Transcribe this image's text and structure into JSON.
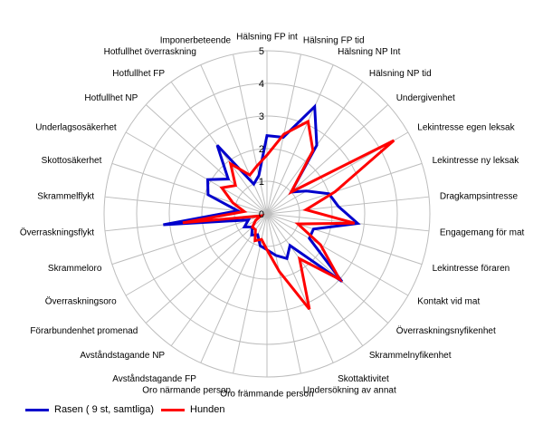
{
  "chart_data": {
    "type": "radar",
    "title": "",
    "rmin": 0,
    "rmax": 5,
    "ticks": [
      0,
      1,
      2,
      3,
      4,
      5
    ],
    "grid": true,
    "legend_position": "bottom-left",
    "categories": [
      "Hälsning FP int",
      "Hälsning FP tid",
      "Hälsning NP Int",
      "Hälsning NP tid",
      "Undergivenhet",
      "Lekintresse egen leksak",
      "Lekintresse ny leksak",
      "Dragkampsintresse",
      "Engagemang för mat",
      "Lekintresse föraren",
      "Kontakt vid mat",
      "Överraskningsnyfikenhet",
      "Skrammelnyfikenhet",
      "Skottaktivitet",
      "Undersökning av annat",
      "Oro främmande person",
      "Oro närmande person",
      "Avståndstagande FP",
      "Avståndstagande NP",
      "Förarbundenhet promenad",
      "Överraskningsoro",
      "Skrammeloro",
      "Överraskningsflykt",
      "Skrammelflykt",
      "Skottosäkerhet",
      "Underlagsosäkerhet",
      "Hotfullhet NP",
      "Hotfullhet FP",
      "Hotfullhet överraskning",
      "Imponerbeteende"
    ],
    "series": [
      {
        "name": "Rasen ( 9 st, samtliga)",
        "color": "#0000cc",
        "values": [
          2.4,
          2.4,
          3.6,
          2.6,
          1.0,
          1.4,
          2.0,
          2.2,
          2.8,
          1.5,
          1.5,
          3.1,
          1.2,
          1.5,
          1.3,
          1.1,
          1.0,
          0.7,
          0.8,
          0.6,
          0.8,
          0.6,
          3.2,
          0.9,
          1.9,
          2.1,
          1.6,
          2.6,
          1.0,
          1.2
        ]
      },
      {
        "name": "Hunden",
        "color": "#ff0000",
        "values": [
          1.8,
          2.5,
          3.1,
          2.4,
          1.0,
          4.5,
          2.2,
          1.2,
          2.7,
          1.0,
          1.9,
          3.0,
          1.7,
          3.2,
          1.8,
          1.1,
          0.8,
          0.9,
          0.6,
          0.6,
          0.4,
          0.2,
          2.6,
          0.7,
          1.1,
          1.6,
          1.3,
          1.9,
          1.3,
          1.5
        ]
      }
    ]
  }
}
